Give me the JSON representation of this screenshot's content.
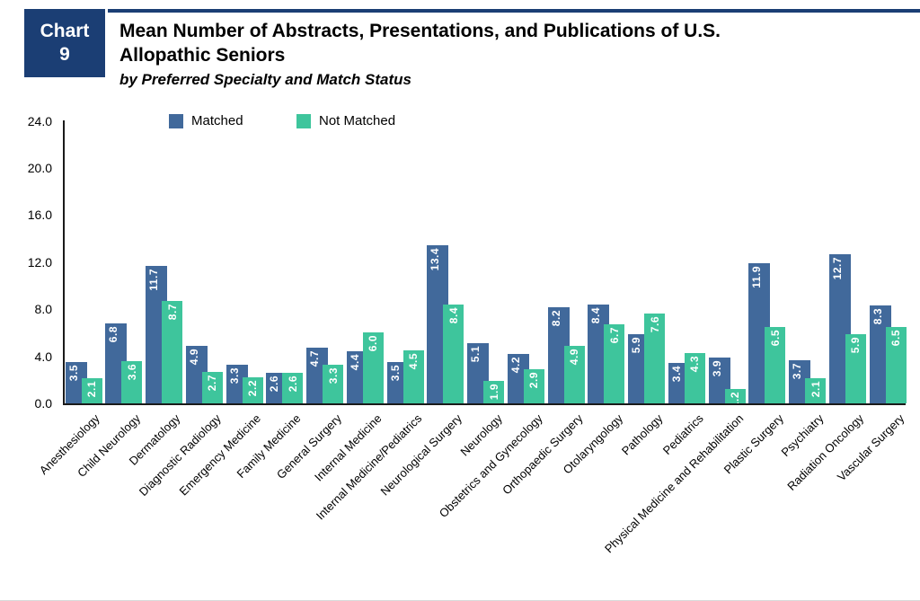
{
  "header": {
    "tag_line1": "Chart",
    "tag_line2": "9",
    "title_line1": "Mean Number of Abstracts, Presentations, and Publications of U.S.",
    "title_line2": "Allopathic Seniors",
    "subtitle": "by Preferred Specialty and Match Status"
  },
  "colors": {
    "navy": "#1b3e74",
    "matched_bar": "#41699b",
    "not_matched_bar": "#3ec59c",
    "axis": "#1a1a1a"
  },
  "chart_data": {
    "type": "bar",
    "title": "Mean Number of Abstracts, Presentations, and Publications of U.S. Allopathic Seniors",
    "subtitle": "by Preferred Specialty and Match Status",
    "xlabel": "",
    "ylabel": "",
    "ylim": [
      0,
      24
    ],
    "ytick_labels": [
      "0.0",
      "4.0",
      "8.0",
      "12.0",
      "16.0",
      "20.0",
      "24.0"
    ],
    "grid": false,
    "legend_position": "top",
    "value_labels": "rotated, white, inside bar tops",
    "categories": [
      "Anesthesiology",
      "Child Neurology",
      "Dermatology",
      "Diagnostic Radiology",
      "Emergency Medicine",
      "Family Medicine",
      "General Surgery",
      "Internal Medicine",
      "Internal Medicine/Pediatrics",
      "Neurological Surgery",
      "Neurology",
      "Obstetrics and Gynecology",
      "Orthopaedic Surgery",
      "Otolaryngology",
      "Pathology",
      "Pediatrics",
      "Physical Medicine and Rehabilitation",
      "Plastic Surgery",
      "Psychiatry",
      "Radiation Oncology",
      "Vascular Surgery"
    ],
    "series": [
      {
        "name": "Matched",
        "color": "#41699b",
        "values": [
          3.5,
          6.8,
          11.7,
          4.9,
          3.3,
          2.6,
          4.7,
          4.4,
          3.5,
          13.4,
          5.1,
          4.2,
          8.2,
          8.4,
          5.9,
          3.4,
          3.9,
          11.9,
          3.7,
          12.7,
          8.3
        ]
      },
      {
        "name": "Not Matched",
        "color": "#3ec59c",
        "values": [
          2.1,
          3.6,
          8.7,
          2.7,
          2.2,
          2.6,
          3.3,
          6.0,
          4.5,
          8.4,
          1.9,
          2.9,
          4.9,
          6.7,
          7.6,
          4.3,
          1.2,
          6.5,
          2.1,
          5.9,
          6.5
        ]
      }
    ]
  }
}
